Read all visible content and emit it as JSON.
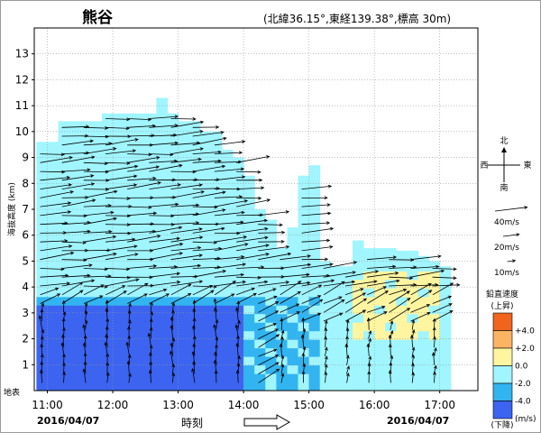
{
  "station": "熊谷",
  "location": "(北緯36.15°,東経139.38°,標高 30m)",
  "left_note": "地表",
  "chart_data": {
    "type": "heatmap",
    "title": "熊谷",
    "subtitle": "(北緯36.15°,東経139.38°,標高 30m)",
    "xlabel": "時刻",
    "ylabel": "海抜高度 (km)",
    "x_ticks": [
      "11:00",
      "12:00",
      "13:00",
      "14:00",
      "15:00",
      "16:00",
      "17:00"
    ],
    "xlim": [
      "10:48",
      "17:35"
    ],
    "y_ticks": [
      1,
      2,
      3,
      4,
      5,
      6,
      7,
      8,
      9,
      10,
      11,
      12,
      13
    ],
    "ylim": [
      0,
      14
    ],
    "date_start": "2016/04/07",
    "date_end": "2016/04/07",
    "arrow_legend": {
      "compass": {
        "north": "北",
        "south": "南",
        "east": "東",
        "west": "西"
      },
      "scales": [
        "40m/s",
        "20m/s",
        "10m/s"
      ]
    },
    "color_legend": {
      "title": "鉛直速度",
      "top_label": "(上昇)",
      "bottom_label": "(下降)",
      "bins": [
        {
          "label": "+4.0",
          "color": "#f0641e"
        },
        {
          "label": "+2.0",
          "color": "#fab464"
        },
        {
          "label": "0.0",
          "color": "#fff5a0"
        },
        {
          "label": "-2.0",
          "color": "#a0f5ff"
        },
        {
          "label": "-4.0",
          "color": "#32b4f0"
        },
        {
          "label": "(m/s)",
          "color": "#3c64f0"
        }
      ]
    },
    "column_tops_km": [
      [
        "10:50",
        9.6
      ],
      [
        "11:00",
        9.6
      ],
      [
        "11:10",
        10.4
      ],
      [
        "11:20",
        10.4
      ],
      [
        "11:30",
        10.4
      ],
      [
        "11:40",
        10.4
      ],
      [
        "11:50",
        10.7
      ],
      [
        "12:00",
        10.7
      ],
      [
        "12:10",
        10.7
      ],
      [
        "12:20",
        10.7
      ],
      [
        "12:30",
        10.7
      ],
      [
        "12:40",
        11.3
      ],
      [
        "12:50",
        10.7
      ],
      [
        "13:00",
        10.4
      ],
      [
        "13:10",
        10.4
      ],
      [
        "13:20",
        10.0
      ],
      [
        "13:30",
        10.0
      ],
      [
        "13:40",
        9.3
      ],
      [
        "13:50",
        9.0
      ],
      [
        "14:00",
        8.3
      ],
      [
        "14:10",
        7.0
      ],
      [
        "14:20",
        6.6
      ],
      [
        "14:30",
        5.5
      ],
      [
        "14:40",
        6.3
      ],
      [
        "14:50",
        8.3
      ],
      [
        "15:00",
        8.7
      ],
      [
        "15:10",
        5.0
      ],
      [
        "15:20",
        4.8
      ],
      [
        "15:30",
        4.8
      ],
      [
        "15:40",
        5.8
      ],
      [
        "15:50",
        5.5
      ],
      [
        "16:00",
        5.5
      ],
      [
        "16:10",
        5.5
      ],
      [
        "16:20",
        5.4
      ],
      [
        "16:30",
        5.4
      ],
      [
        "16:40",
        5.2
      ],
      [
        "16:50",
        5.0
      ],
      [
        "17:00",
        4.8
      ]
    ],
    "downdraft_region": {
      "time_start": "10:50",
      "time_end": "13:55",
      "height_km": [
        0.0,
        3.3
      ],
      "value_ms": "< -4.0"
    },
    "updraft_region": {
      "time_start": "15:35",
      "time_end": "17:00",
      "height_km": [
        1.2,
        5.0
      ],
      "value_ms": "0.0 to +2.0"
    },
    "wind_vectors_summary": [
      {
        "layer_km": [
          0.2,
          3.2
        ],
        "time": "11:00-14:00",
        "direction": "from south",
        "speed_ms": [
          5,
          15
        ]
      },
      {
        "layer_km": [
          3.5,
          11.2
        ],
        "time": "11:00-14:30",
        "direction": "from west-southwest",
        "speed_ms": [
          20,
          40
        ]
      },
      {
        "layer_km": [
          3.0,
          5.5
        ],
        "time": "14:30-17:00",
        "direction": "from west",
        "speed_ms": [
          15,
          30
        ]
      },
      {
        "layer_km": [
          0.2,
          2.5
        ],
        "time": "14:30-17:00",
        "direction": "from south-southwest",
        "speed_ms": [
          5,
          15
        ]
      }
    ]
  }
}
